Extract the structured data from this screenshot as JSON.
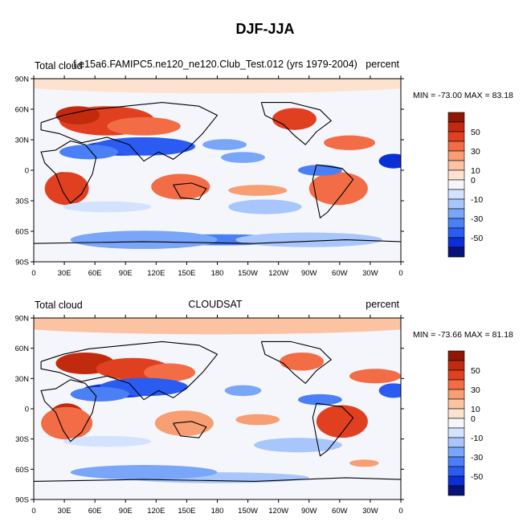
{
  "page": {
    "title": "DJF-JJA"
  },
  "palette": [
    "#08137a",
    "#0b2fd6",
    "#2b5cf2",
    "#4a7ff6",
    "#79a6f8",
    "#a8c6fb",
    "#d3e3fd",
    "#f5f6fb",
    "#fde2cf",
    "#fbc3a2",
    "#f79e73",
    "#f26c45",
    "#e0401f",
    "#c22a0e",
    "#8f1706"
  ],
  "chart_data": [
    {
      "type": "heatmap",
      "left_label": "Total cloud",
      "center_label": "f.e15a6.FAMIPC5.ne120_ne120.Club_Test.012 (yrs 1979-2004)",
      "right_label": "percent",
      "min_max_text": "MIN = -73.00 MAX =  83.18",
      "min": -73.0,
      "max": 83.18,
      "x_ticks": [
        "0",
        "30E",
        "60E",
        "90E",
        "120E",
        "150E",
        "180",
        "150W",
        "120W",
        "90W",
        "60W",
        "30W",
        "0"
      ],
      "y_ticks": [
        "90N",
        "60N",
        "30N",
        "0",
        "30S",
        "60S",
        "90S"
      ],
      "colorbar_labels": [
        "50",
        "30",
        "10",
        "0",
        "-10",
        "-30",
        "-50"
      ]
    },
    {
      "type": "heatmap",
      "left_label": "Total cloud",
      "center_label": "CLOUDSAT",
      "right_label": "percent",
      "min_max_text": "MIN = -73.66 MAX =  81.18",
      "min": -73.66,
      "max": 81.18,
      "x_ticks": [
        "0",
        "30E",
        "60E",
        "90E",
        "120E",
        "150E",
        "180",
        "150W",
        "120W",
        "90W",
        "60W",
        "30W",
        "0"
      ],
      "y_ticks": [
        "90N",
        "60N",
        "30N",
        "0",
        "30S",
        "60S",
        "90S"
      ],
      "colorbar_labels": [
        "50",
        "30",
        "10",
        "0",
        "-10",
        "-30",
        "-50"
      ]
    }
  ]
}
